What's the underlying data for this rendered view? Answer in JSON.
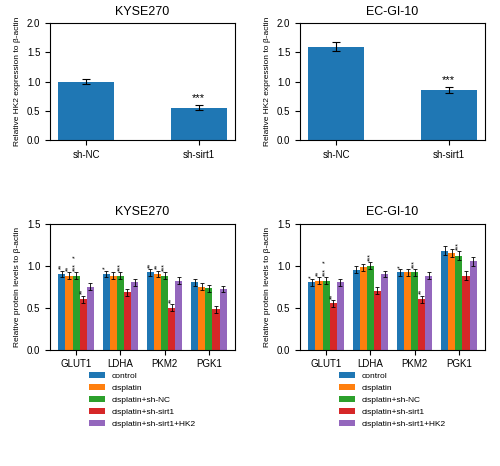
{
  "chart_data": [
    {
      "type": "bar",
      "title": "KYSE270",
      "categories": [
        "sh-NC",
        "sh-sirt1"
      ],
      "values": [
        1.0,
        0.55
      ],
      "errors": [
        0.05,
        0.04
      ],
      "annotations": [
        null,
        "***"
      ],
      "ylabel": "Relative HK2 expression to β-actin",
      "ylim": [
        0,
        2.0
      ],
      "yticks": [
        0.0,
        0.5,
        1.0,
        1.5,
        2.0
      ]
    },
    {
      "type": "bar",
      "title": "EC-GI-10",
      "categories": [
        "sh-NC",
        "sh-sirt1"
      ],
      "values": [
        1.6,
        0.85
      ],
      "errors": [
        0.08,
        0.05
      ],
      "annotations": [
        null,
        "***"
      ],
      "ylabel": "Relative HK2 expression to β-actin",
      "ylim": [
        0,
        2.0
      ],
      "yticks": [
        0.0,
        0.5,
        1.0,
        1.5,
        2.0
      ]
    },
    {
      "type": "bar",
      "title": "KYSE270",
      "categories": [
        "GLUT1",
        "LDHA",
        "PKM2",
        "PGK1"
      ],
      "series": [
        {
          "name": "control",
          "values": [
            0.9,
            0.9,
            0.92,
            0.8
          ],
          "errors": [
            0.04,
            0.04,
            0.04,
            0.04
          ],
          "annotations": [
            [
              "**"
            ],
            [
              "*"
            ],
            [
              "**"
            ],
            null
          ]
        },
        {
          "name": "cisplatin",
          "values": [
            0.88,
            0.88,
            0.9,
            0.75
          ],
          "errors": [
            0.04,
            0.04,
            0.04,
            0.04
          ],
          "annotations": [
            [
              "**"
            ],
            null,
            [
              "**"
            ],
            null
          ]
        },
        {
          "name": "cisplatin+sh-NC",
          "values": [
            0.88,
            0.88,
            0.88,
            0.73
          ],
          "errors": [
            0.04,
            0.04,
            0.04,
            0.04
          ],
          "annotations": [
            [
              "***",
              "*"
            ],
            [
              "***"
            ],
            [
              "***"
            ],
            null
          ]
        },
        {
          "name": "cisplatin+sh-sirt1",
          "values": [
            0.6,
            0.68,
            0.5,
            0.48
          ],
          "errors": [
            0.04,
            0.04,
            0.04,
            0.04
          ],
          "annotations": [
            [
              "**"
            ],
            null,
            [
              "**"
            ],
            null
          ]
        },
        {
          "name": "cisplatin+sh-sirt1+HK2",
          "values": [
            0.75,
            0.8,
            0.82,
            0.72
          ],
          "errors": [
            0.04,
            0.04,
            0.04,
            0.04
          ],
          "annotations": [
            null,
            null,
            null,
            null
          ]
        }
      ],
      "ylabel": "Relative protein levels to β-actin",
      "ylim": [
        0,
        1.5
      ],
      "yticks": [
        0.0,
        0.5,
        1.0,
        1.5
      ],
      "legend": "upper center"
    },
    {
      "type": "bar",
      "title": "EC-GI-10",
      "categories": [
        "GLUT1",
        "LDHA",
        "PKM2",
        "PGK1"
      ],
      "series": [
        {
          "name": "control",
          "values": [
            0.8,
            0.95,
            0.92,
            1.18
          ],
          "errors": [
            0.04,
            0.04,
            0.04,
            0.05
          ],
          "annotations": [
            [
              "*"
            ],
            null,
            [
              "*"
            ],
            null
          ]
        },
        {
          "name": "cisplatin",
          "values": [
            0.82,
            0.98,
            0.92,
            1.15
          ],
          "errors": [
            0.04,
            0.04,
            0.04,
            0.05
          ],
          "annotations": [
            [
              "**"
            ],
            null,
            null,
            null
          ]
        },
        {
          "name": "cisplatin+sh-NC",
          "values": [
            0.82,
            1.0,
            0.92,
            1.12
          ],
          "errors": [
            0.04,
            0.04,
            0.04,
            0.05
          ],
          "annotations": [
            [
              "***",
              "*"
            ],
            [
              "***"
            ],
            [
              "***"
            ],
            [
              "***"
            ]
          ]
        },
        {
          "name": "cisplatin+sh-sirt1",
          "values": [
            0.55,
            0.7,
            0.6,
            0.88
          ],
          "errors": [
            0.04,
            0.04,
            0.04,
            0.05
          ],
          "annotations": [
            [
              "**"
            ],
            null,
            [
              "**"
            ],
            null
          ]
        },
        {
          "name": "cisplatin+sh-sirt1+HK2",
          "values": [
            0.8,
            0.9,
            0.88,
            1.05
          ],
          "errors": [
            0.04,
            0.04,
            0.04,
            0.05
          ],
          "annotations": [
            null,
            null,
            null,
            null
          ]
        }
      ],
      "ylabel": "Relative protein levels to β-actin",
      "ylim": [
        0,
        1.5
      ],
      "yticks": [
        0.0,
        0.5,
        1.0,
        1.5
      ],
      "legend": "upper center"
    }
  ]
}
